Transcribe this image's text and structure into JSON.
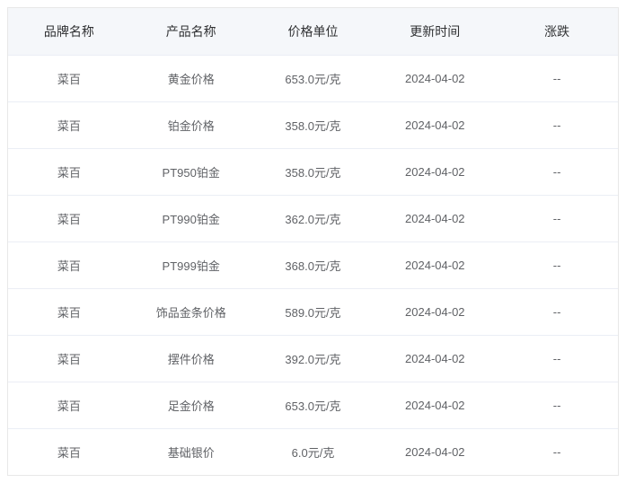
{
  "table": {
    "type": "table",
    "columns": [
      {
        "key": "brand",
        "label": "品牌名称",
        "width": "20%",
        "align": "center"
      },
      {
        "key": "product",
        "label": "产品名称",
        "width": "20%",
        "align": "center"
      },
      {
        "key": "price",
        "label": "价格单位",
        "width": "20%",
        "align": "center"
      },
      {
        "key": "update_time",
        "label": "更新时间",
        "width": "20%",
        "align": "center"
      },
      {
        "key": "change",
        "label": "涨跌",
        "width": "20%",
        "align": "center"
      }
    ],
    "rows": [
      {
        "brand": "菜百",
        "product": "黄金价格",
        "price": "653.0元/克",
        "update_time": "2024-04-02",
        "change": "--"
      },
      {
        "brand": "菜百",
        "product": "铂金价格",
        "price": "358.0元/克",
        "update_time": "2024-04-02",
        "change": "--"
      },
      {
        "brand": "菜百",
        "product": "PT950铂金",
        "price": "358.0元/克",
        "update_time": "2024-04-02",
        "change": "--"
      },
      {
        "brand": "菜百",
        "product": "PT990铂金",
        "price": "362.0元/克",
        "update_time": "2024-04-02",
        "change": "--"
      },
      {
        "brand": "菜百",
        "product": "PT999铂金",
        "price": "368.0元/克",
        "update_time": "2024-04-02",
        "change": "--"
      },
      {
        "brand": "菜百",
        "product": "饰品金条价格",
        "price": "589.0元/克",
        "update_time": "2024-04-02",
        "change": "--"
      },
      {
        "brand": "菜百",
        "product": "摆件价格",
        "price": "392.0元/克",
        "update_time": "2024-04-02",
        "change": "--"
      },
      {
        "brand": "菜百",
        "product": "足金价格",
        "price": "653.0元/克",
        "update_time": "2024-04-02",
        "change": "--"
      },
      {
        "brand": "菜百",
        "product": "基础银价",
        "price": "6.0元/克",
        "update_time": "2024-04-02",
        "change": "--"
      }
    ],
    "styling": {
      "header_bg": "#f5f7fa",
      "header_text_color": "#303133",
      "header_font_size": 14,
      "header_font_weight": 500,
      "body_text_color": "#606266",
      "body_font_size": 13,
      "border_color": "#ebeef5",
      "outer_border_color": "#e8e8e8",
      "row_bg": "#ffffff",
      "cell_padding_vertical": 16,
      "cell_padding_horizontal": 8
    }
  }
}
